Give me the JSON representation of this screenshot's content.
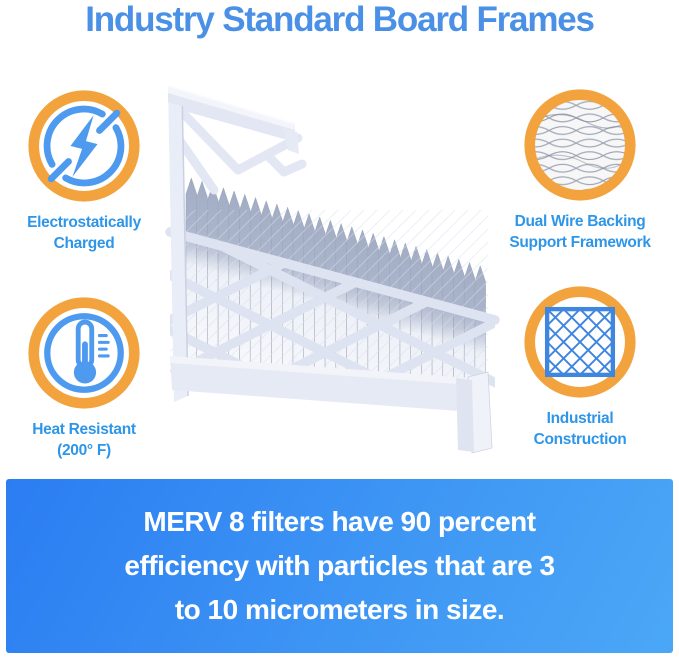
{
  "title": "Industry Standard Board Frames",
  "features": {
    "electro": {
      "icon": "lightning-bolt-icon",
      "line1": "Electrostatically",
      "line2": "Charged"
    },
    "wire": {
      "icon": "wire-mesh-icon",
      "line1": "Dual Wire Backing",
      "line2": "Support Framework"
    },
    "heat": {
      "icon": "thermometer-icon",
      "line1": "Heat Resistant",
      "line2": "(200° F)"
    },
    "industrial": {
      "icon": "diamond-lattice-icon",
      "line1": "Industrial",
      "line2": "Construction"
    }
  },
  "banner": {
    "line1": "MERV 8 filters have 90 percent",
    "line2": "efficiency with particles that are 3",
    "line3": "to 10 micrometers in size."
  },
  "colors": {
    "title_blue": "#4a90e6",
    "label_blue": "#2e96e8",
    "ring_orange": "#f2a33e",
    "icon_blue": "#4d9aef",
    "lattice_icon_blue": "#3e86e0",
    "banner_gradient_start": "#2b7df2",
    "banner_gradient_end": "#4ba7f6",
    "filter_frame": "#e9edf7",
    "pleat_shadow": "#a7b1c8"
  }
}
